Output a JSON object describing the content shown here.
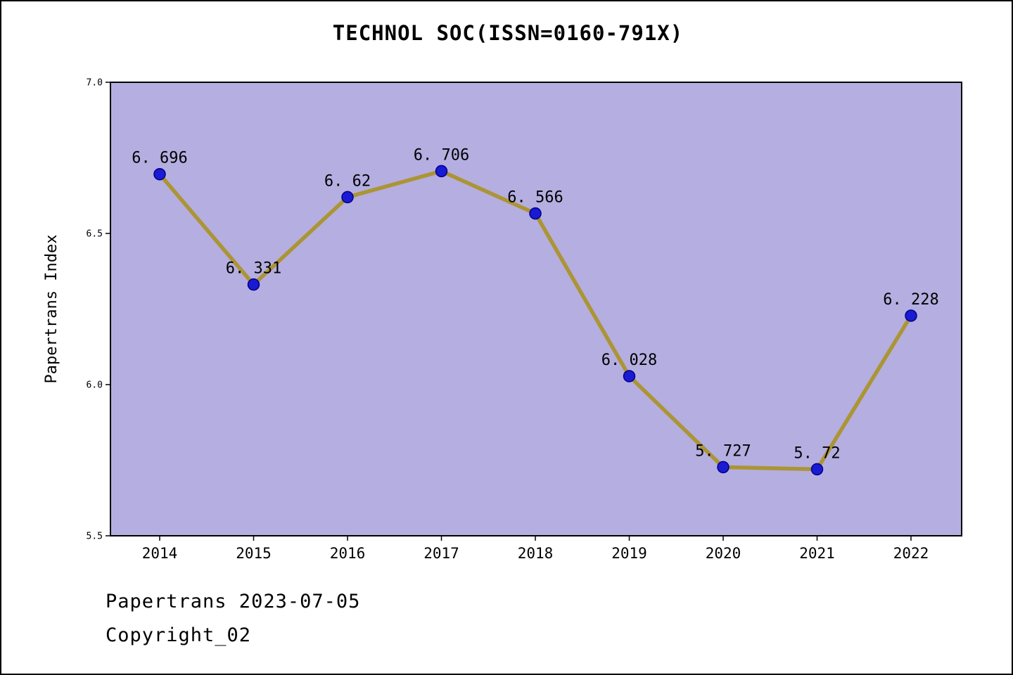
{
  "title": "TECHNOL SOC(ISSN=0160-791X)",
  "footer": {
    "line1": "Papertrans 2023-07-05",
    "line2": "Copyright_02"
  },
  "chart_data": {
    "type": "line",
    "title": "TECHNOL SOC(ISSN=0160-791X)",
    "x": [
      "2014",
      "2015",
      "2016",
      "2017",
      "2018",
      "2019",
      "2020",
      "2021",
      "2022"
    ],
    "values": [
      6.696,
      6.331,
      6.62,
      6.706,
      6.566,
      6.028,
      5.727,
      5.72,
      6.228
    ],
    "point_labels": [
      "6. 696",
      "6. 331",
      "6. 62",
      "6. 706",
      "6. 566",
      "6. 028",
      "5. 727",
      "5. 72",
      "6. 228"
    ],
    "xlabel": "",
    "ylabel": "Papertrans Index",
    "ylim": [
      5.5,
      7.0
    ],
    "yticks": [
      5.5,
      6.0,
      6.5,
      7.0
    ],
    "ytick_labels": [
      "5.5",
      "6.0",
      "6.5",
      "7.0"
    ],
    "grid": false,
    "legend": "none",
    "colors": {
      "plot_bg": "#b5aee1",
      "line": "#ab9534",
      "marker_fill": "#1a1ad2",
      "marker_edge": "#00008b",
      "axis": "#000000",
      "text": "#000000"
    }
  }
}
